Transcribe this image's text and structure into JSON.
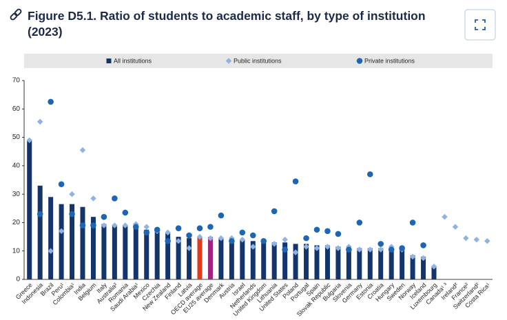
{
  "chart_data": {
    "type": "bar",
    "title": "Figure D5.1. Ratio of students to academic staff, by type of institution (2023)",
    "categories": [
      "Greece",
      "Indonesia",
      "Brazil",
      "Peru¹",
      "Colombia¹",
      "India",
      "Belgium",
      "Italy",
      "Australia²",
      "Romania",
      "Saudi Arabia¹",
      "Mexico",
      "Czechia",
      "New Zealand",
      "Finland",
      "Latvia",
      "OECD average",
      "EU25 average",
      "Denmark",
      "Austria",
      "Israel",
      "Netherlands",
      "United Kingdom",
      "Lithuania",
      "United States",
      "Poland",
      "Portugal",
      "Spain",
      "Slovak Republic",
      "Bulgaria",
      "Slovenia",
      "Germany",
      "Estonia",
      "Croatia",
      "Hungary",
      "Sweden",
      "Norway",
      "Iceland",
      "Luxembourg",
      "Canada¹ ³",
      "Ireland²",
      "France²",
      "Switzerland²",
      "Costa Rica¹"
    ],
    "series": [
      {
        "name": "All institutions",
        "kind": "bar",
        "color": "#14356b",
        "highlights": [
          {
            "index": 16,
            "color": "#e03a1e"
          },
          {
            "index": 17,
            "color": "#a3237c"
          }
        ],
        "values": [
          49,
          33,
          29,
          26.5,
          26.5,
          25.5,
          22,
          19.5,
          19,
          19,
          18.5,
          17.5,
          17,
          16.5,
          15,
          14.5,
          15,
          15,
          14.5,
          14,
          14,
          13.5,
          13.5,
          13,
          13,
          12.5,
          12.5,
          12,
          12,
          11.5,
          11,
          11,
          11,
          11,
          11,
          11,
          8.5,
          8,
          4.5,
          null,
          null,
          null,
          null,
          null
        ]
      },
      {
        "name": "Public institutions",
        "kind": "diamond",
        "color": "#8fb3e3",
        "values": [
          49,
          55.5,
          10,
          17,
          30,
          45.5,
          28.5,
          19,
          19,
          19,
          19.5,
          18.5,
          17,
          16.5,
          13.5,
          11,
          15,
          14.5,
          14.5,
          14.5,
          14,
          11.5,
          13.5,
          12.5,
          14,
          9.5,
          11.5,
          11,
          11.5,
          11,
          11.5,
          10.5,
          10.5,
          10.5,
          11.5,
          10.5,
          8,
          7.5,
          4.5,
          22,
          18.5,
          14.5,
          14,
          13.5
        ]
      },
      {
        "name": "Private institutions",
        "kind": "circle",
        "color": "#1e66b4",
        "values": [
          null,
          23,
          62.5,
          33.5,
          23,
          19,
          19,
          22,
          28.5,
          23.5,
          18.5,
          16.5,
          17.5,
          13.5,
          18,
          15.5,
          18,
          18.5,
          22.5,
          13.5,
          16.5,
          15.5,
          13.5,
          24,
          10.5,
          34.5,
          14.5,
          17.5,
          17,
          16,
          10.5,
          20,
          37,
          12.5,
          10.5,
          11,
          20,
          12,
          null,
          null,
          null,
          null,
          null,
          null
        ]
      }
    ],
    "ylim": [
      0,
      70
    ],
    "yticks": [
      0,
      10,
      20,
      30,
      40,
      50,
      60,
      70
    ],
    "grid": false
  }
}
